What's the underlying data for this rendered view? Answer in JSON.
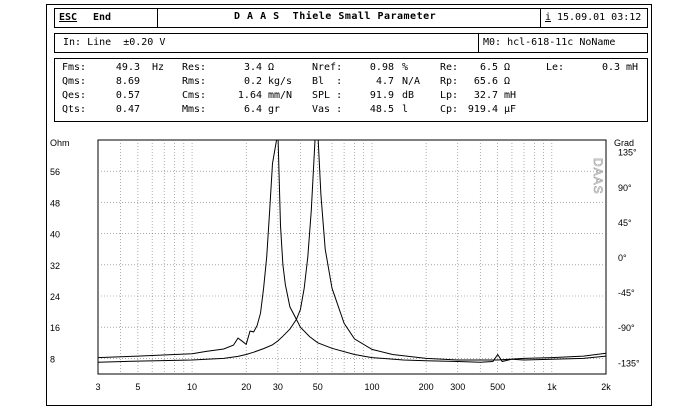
{
  "header": {
    "esc_label": "ESC",
    "end_label": "End",
    "title": "D A A S  Thiele Small Parameter",
    "info_icon_label": "i",
    "datetime": "15.09.01 03:12"
  },
  "input_bar": {
    "input_label": "In: Line  ±0.20 V",
    "memory_label": "M0: hcl-618-11c NoName"
  },
  "params": {
    "rows": [
      [
        {
          "label": "Fms:",
          "value": "49.3",
          "unit": "Hz"
        },
        {
          "label": "Res:",
          "value": "3.4",
          "unit": "Ω"
        },
        {
          "label": "Nref:",
          "value": "0.98",
          "unit": "%"
        },
        {
          "label": "Re:",
          "value": "6.5",
          "unit": "Ω"
        },
        {
          "label": "Le:",
          "value": "0.3",
          "unit": "mH"
        }
      ],
      [
        {
          "label": "Qms:",
          "value": "8.69",
          "unit": ""
        },
        {
          "label": "Rms:",
          "value": "0.2",
          "unit": "kg/s"
        },
        {
          "label": "Bl  :",
          "value": "4.7",
          "unit": "N/A"
        },
        {
          "label": "Rp:",
          "value": "65.6",
          "unit": "Ω"
        }
      ],
      [
        {
          "label": "Qes:",
          "value": "0.57",
          "unit": ""
        },
        {
          "label": "Cms:",
          "value": "1.64",
          "unit": "mm/N"
        },
        {
          "label": "SPL :",
          "value": "91.9",
          "unit": "dB"
        },
        {
          "label": "Lp:",
          "value": "32.7",
          "unit": "mH"
        }
      ],
      [
        {
          "label": "Qts:",
          "value": "0.47",
          "unit": ""
        },
        {
          "label": "Mms:",
          "value": "6.4",
          "unit": "gr"
        },
        {
          "label": "Vas :",
          "value": "48.5",
          "unit": "l"
        },
        {
          "label": "Cp:",
          "value": "919.4",
          "unit": "μF"
        }
      ]
    ]
  },
  "chart": {
    "left_axis_unit": "Ohm",
    "right_axis_unit": "Grad",
    "vertical_tag": "DAAS",
    "left_ticks": [
      "56",
      "48",
      "40",
      "32",
      "24",
      "16",
      "8"
    ],
    "right_ticks": [
      "135°",
      "90°",
      "45°",
      "0°",
      "-45°",
      "-90°",
      "-135°"
    ],
    "x_ticks": [
      "3",
      "5",
      "10",
      "20",
      "30",
      "50",
      "100",
      "200",
      "300",
      "500",
      "1k",
      "2k"
    ]
  },
  "chart_data": {
    "type": "line",
    "x_scale": "log",
    "xlim": [
      3,
      2000
    ],
    "ylim_left": [
      4,
      64
    ],
    "ylim_right": [
      -150,
      150
    ],
    "y_left_label": "Ohm",
    "y_right_label": "Grad",
    "grid": true,
    "series": [
      {
        "axis": "left",
        "x": [
          3,
          5,
          8,
          10,
          12,
          15,
          18,
          20,
          22,
          25,
          28,
          30,
          32,
          35,
          38,
          40,
          42,
          44,
          46,
          48,
          49,
          50,
          52,
          55,
          60,
          70,
          80,
          100,
          130,
          200,
          300,
          500,
          700,
          1000,
          1500,
          2000
        ],
        "y": [
          7.0,
          7.3,
          7.5,
          7.6,
          7.8,
          8.0,
          8.5,
          9.0,
          9.6,
          10.5,
          11.5,
          12.5,
          13.7,
          15.5,
          18,
          20.5,
          26,
          34,
          46,
          62,
          70,
          66,
          50,
          36,
          26,
          17,
          13,
          10.3,
          9.0,
          8.0,
          7.6,
          7.6,
          8.0,
          8.2,
          8.6,
          9.3
        ]
      },
      {
        "axis": "right",
        "x": [
          3,
          5,
          8,
          10,
          12,
          15,
          17,
          18,
          19,
          20,
          21,
          22,
          23,
          24,
          25,
          26,
          27,
          28,
          30,
          31,
          32,
          33,
          35,
          38,
          40,
          45,
          50,
          60,
          80,
          100,
          150,
          200,
          300,
          400,
          470,
          500,
          530,
          600,
          700,
          1000,
          1500,
          2000
        ],
        "y": [
          -129,
          -127,
          -125,
          -124,
          -121,
          -118,
          -113,
          -104,
          -108,
          -112,
          -95,
          -96,
          -88,
          -72,
          -40,
          0,
          60,
          120,
          160,
          40,
          -10,
          -35,
          -64,
          -80,
          -90,
          -102,
          -110,
          -117,
          -125,
          -129,
          -132,
          -133,
          -134,
          -135,
          -134,
          -125,
          -134,
          -131,
          -132,
          -131,
          -130,
          -127
        ]
      }
    ]
  }
}
